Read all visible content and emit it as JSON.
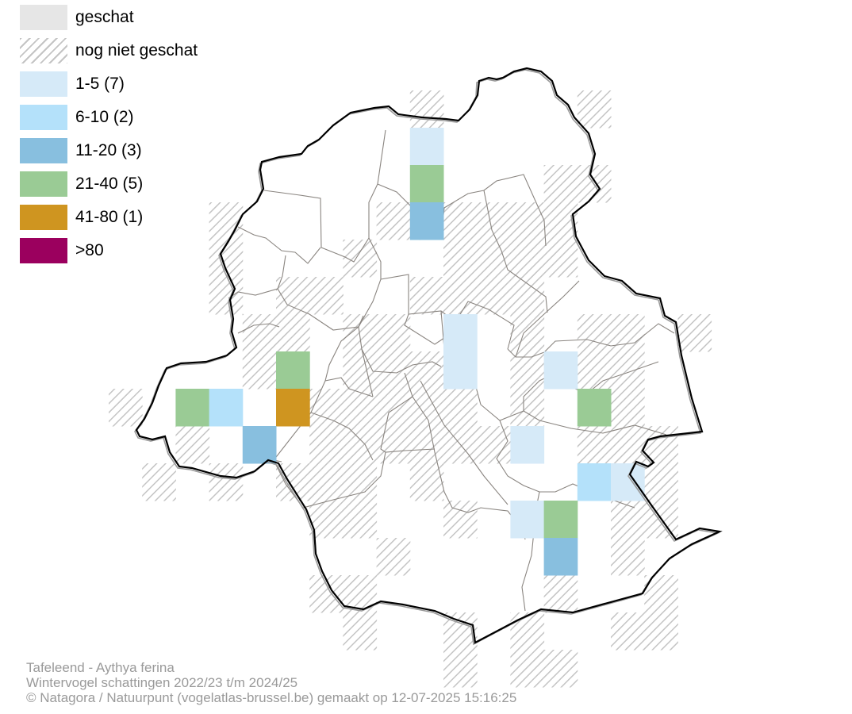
{
  "legend": [
    {
      "label": "geschat",
      "color": "#e6e6e6",
      "hatched": false
    },
    {
      "label": "nog niet geschat",
      "color": "#ffffff",
      "hatched": true
    },
    {
      "label": "1-5 (7)",
      "color": "#d6eaf8",
      "hatched": false
    },
    {
      "label": "6-10 (2)",
      "color": "#b4e1fa",
      "hatched": false
    },
    {
      "label": "11-20 (3)",
      "color": "#88bfdf",
      "hatched": false
    },
    {
      "label": "21-40 (5)",
      "color": "#9acb95",
      "hatched": false
    },
    {
      "label": "41-80 (1)",
      "color": "#cf9520",
      "hatched": false
    },
    {
      "label": ">80",
      "color": "#9b005e",
      "hatched": false
    }
  ],
  "caption": {
    "line1": "Tafeleend - Aythya ferina",
    "line2": "Wintervogel schattingen 2022/23 t/m 2024/25",
    "line3": "© Natagora / Natuurpunt (vogelatlas-brussel.be) gemaakt op 12-07-2025 15:16:25"
  }
}
